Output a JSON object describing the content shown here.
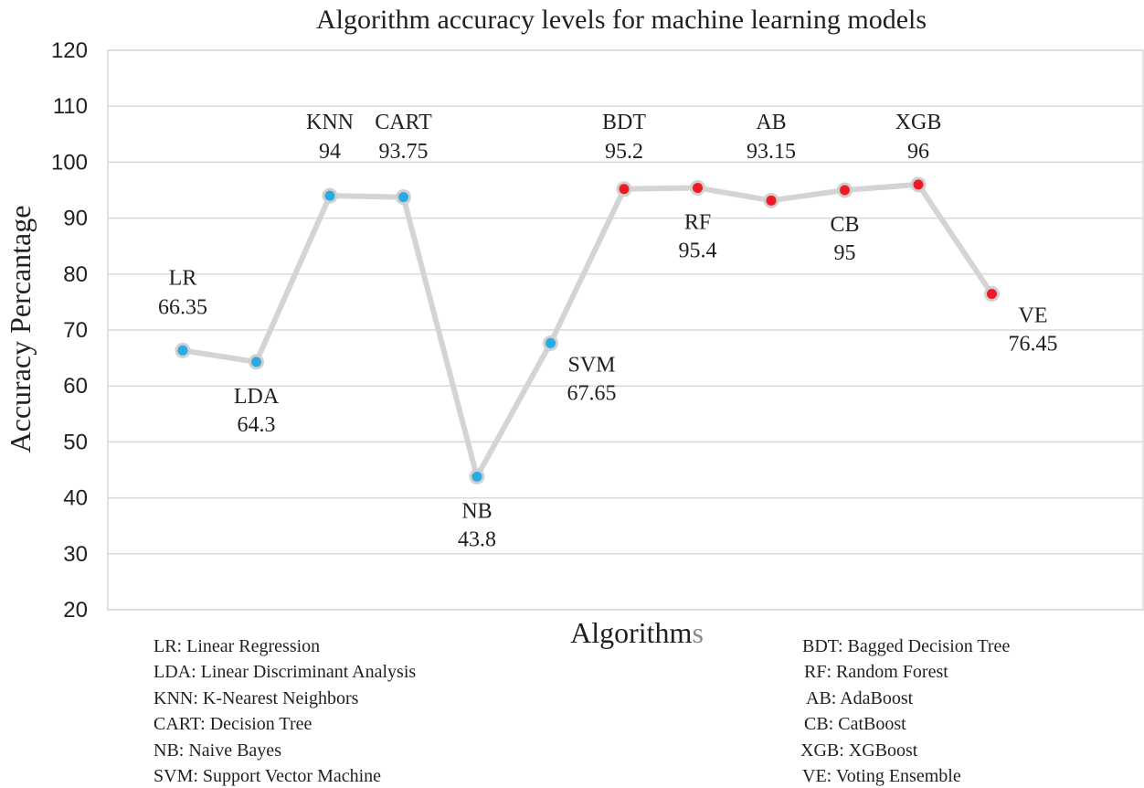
{
  "chart_data": {
    "type": "line",
    "title": "Algorithm accuracy levels for machine learning models",
    "xlabel": "Algorithms",
    "ylabel": "Accuracy Percantage",
    "ylim": [
      20,
      120
    ],
    "yticks": [
      20,
      30,
      40,
      50,
      60,
      70,
      80,
      90,
      100,
      110,
      120
    ],
    "grid": true,
    "categories": [
      "LR",
      "LDA",
      "KNN",
      "CART",
      "NB",
      "SVM",
      "BDT",
      "RF",
      "AB",
      "CB",
      "XGB",
      "VE"
    ],
    "values": [
      66.35,
      64.3,
      94,
      93.75,
      43.8,
      67.65,
      95.2,
      95.4,
      93.15,
      95,
      96,
      76.45
    ],
    "value_labels": [
      "66.35",
      "64.3",
      "94",
      "93.75",
      "43.8",
      "67.65",
      "95.2",
      "95.4",
      "93.15",
      "95",
      "96",
      "76.45"
    ],
    "label_positions": [
      "above",
      "below",
      "above",
      "above",
      "below",
      "below-right",
      "above",
      "below",
      "above",
      "below",
      "above",
      "below-right"
    ],
    "line_color": "#d4d4d4",
    "marker_colors": [
      "#29abe2",
      "#29abe2",
      "#29abe2",
      "#29abe2",
      "#29abe2",
      "#29abe2",
      "#ed1c24",
      "#ed1c24",
      "#ed1c24",
      "#ed1c24",
      "#ed1c24",
      "#ed1c24"
    ]
  },
  "legend": {
    "left": [
      "LR: Linear Regression",
      "LDA: Linear Discriminant Analysis",
      "KNN: K-Nearest Neighbors",
      "CART: Decision Tree",
      "NB: Naive Bayes",
      "SVM: Support Vector Machine"
    ],
    "right": [
      "BDT: Bagged Decision Tree",
      "RF: Random Forest",
      "AB: AdaBoost",
      "CB: CatBoost",
      "XGB: XGBoost",
      "VE: Voting Ensemble"
    ]
  }
}
